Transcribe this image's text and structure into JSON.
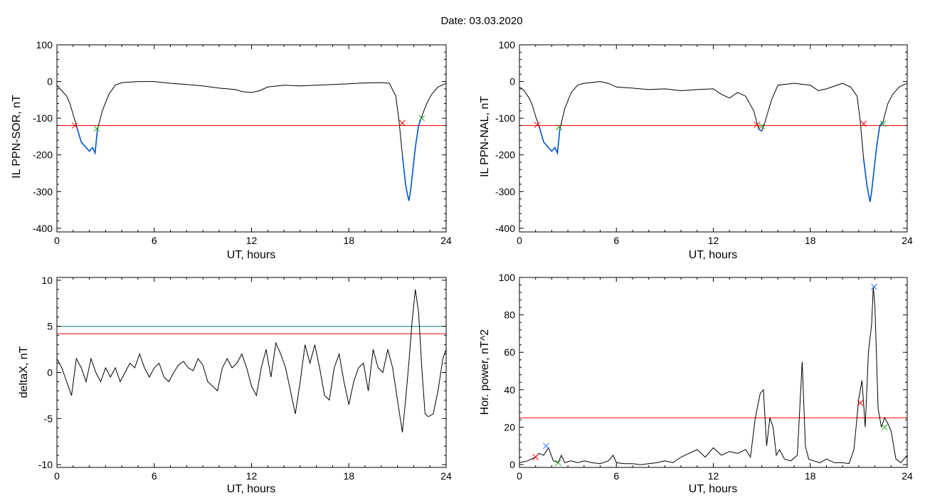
{
  "header": {
    "date_label": "Date:  03.03.2020"
  },
  "colors": {
    "trace": "#000000",
    "highlight": "#0055cc",
    "threshold_red": "#ff0000",
    "threshold_teal": "#008080",
    "marker_green": "#22aa22",
    "marker_blue": "#2277ff"
  },
  "chart_data": [
    {
      "id": "sor",
      "type": "line",
      "xlabel": "UT, hours",
      "ylabel": "IL PPN-SOR, nT",
      "xlim": [
        0,
        24
      ],
      "ylim": [
        -410,
        100
      ],
      "xticks": [
        0,
        6,
        12,
        18,
        24
      ],
      "yticks": [
        100,
        0,
        -100,
        -200,
        -300,
        -400
      ],
      "series": [
        {
          "x": [
            0,
            0.3,
            0.6,
            0.8,
            1.0,
            1.2,
            1.5,
            1.8,
            2.0,
            2.2,
            2.35,
            2.5,
            2.8,
            3.2,
            3.6,
            4.0,
            5.0,
            6.0,
            7.0,
            8.0,
            9.0,
            10.0,
            11.0,
            11.5,
            12.0,
            12.5,
            13.0,
            14.0,
            15.0,
            16.0,
            17.0,
            18.0,
            19.0,
            20.0,
            20.5,
            20.9,
            21.1,
            21.3,
            21.5,
            21.6,
            21.7,
            21.8,
            21.95,
            22.1,
            22.3,
            22.5,
            22.8,
            23.1,
            23.5,
            24.0
          ],
          "y": [
            -10,
            -25,
            -40,
            -60,
            -90,
            -120,
            -165,
            -180,
            -190,
            -180,
            -195,
            -130,
            -80,
            -35,
            -10,
            -3,
            0,
            0,
            -5,
            -8,
            -12,
            -18,
            -22,
            -28,
            -30,
            -25,
            -15,
            -10,
            -12,
            -10,
            -8,
            -6,
            -4,
            -3,
            -5,
            -40,
            -110,
            -200,
            -280,
            -305,
            -325,
            -300,
            -240,
            -180,
            -120,
            -95,
            -60,
            -35,
            -15,
            -5
          ]
        }
      ],
      "highlight_segments": [
        {
          "x": [
            1.2,
            1.5,
            1.8,
            2.0,
            2.2,
            2.35,
            2.5
          ],
          "y": [
            -120,
            -165,
            -180,
            -190,
            -180,
            -195,
            -130
          ]
        },
        {
          "x": [
            21.3,
            21.5,
            21.6,
            21.7,
            21.8,
            21.95,
            22.1,
            22.3,
            22.5
          ],
          "y": [
            -200,
            -280,
            -305,
            -325,
            -300,
            -240,
            -180,
            -120,
            -95
          ]
        }
      ],
      "thresholds": [
        {
          "y": -120,
          "color": "#ff0000"
        }
      ],
      "markers": [
        {
          "x": 1.1,
          "y": -120,
          "color": "#ff0000"
        },
        {
          "x": 2.45,
          "y": -128,
          "color": "#22aa22"
        },
        {
          "x": 21.3,
          "y": -113,
          "color": "#ff0000"
        },
        {
          "x": 22.5,
          "y": -100,
          "color": "#22aa22"
        }
      ]
    },
    {
      "id": "nal",
      "type": "line",
      "xlabel": "UT, hours",
      "ylabel": "IL PPN-NAL, nT",
      "xlim": [
        0,
        24
      ],
      "ylim": [
        -410,
        100
      ],
      "xticks": [
        0,
        6,
        12,
        18,
        24
      ],
      "yticks": [
        100,
        0,
        -100,
        -200,
        -300,
        -400
      ],
      "series": [
        {
          "x": [
            0,
            0.3,
            0.6,
            0.8,
            1.0,
            1.2,
            1.5,
            1.8,
            2.0,
            2.2,
            2.35,
            2.5,
            2.8,
            3.2,
            3.6,
            4.0,
            5.0,
            5.5,
            6.0,
            7.0,
            8.0,
            9.0,
            10.0,
            11.0,
            12.0,
            12.5,
            13.0,
            13.5,
            14.0,
            14.5,
            14.8,
            15.0,
            15.2,
            15.6,
            16.0,
            17.0,
            18.0,
            18.5,
            19.0,
            20.0,
            20.5,
            20.9,
            21.1,
            21.3,
            21.5,
            21.6,
            21.7,
            21.8,
            21.95,
            22.1,
            22.3,
            22.5,
            22.8,
            23.1,
            23.5,
            24.0
          ],
          "y": [
            -15,
            -25,
            -45,
            -65,
            -95,
            -120,
            -165,
            -180,
            -190,
            -180,
            -195,
            -130,
            -75,
            -30,
            -10,
            -5,
            0,
            -5,
            -15,
            -18,
            -22,
            -20,
            -25,
            -22,
            -20,
            -35,
            -45,
            -30,
            -40,
            -80,
            -130,
            -135,
            -110,
            -50,
            -10,
            -5,
            -10,
            -25,
            -20,
            -5,
            -15,
            -40,
            -110,
            -210,
            -280,
            -305,
            -328,
            -300,
            -240,
            -180,
            -120,
            -110,
            -60,
            -35,
            -15,
            -5
          ]
        }
      ],
      "highlight_segments": [
        {
          "x": [
            1.2,
            1.5,
            1.8,
            2.0,
            2.2,
            2.35,
            2.5
          ],
          "y": [
            -120,
            -165,
            -180,
            -190,
            -180,
            -195,
            -130
          ]
        },
        {
          "x": [
            14.8,
            15.0
          ],
          "y": [
            -130,
            -135
          ]
        },
        {
          "x": [
            21.3,
            21.5,
            21.6,
            21.7,
            21.8,
            21.95,
            22.1,
            22.3,
            22.5
          ],
          "y": [
            -210,
            -280,
            -305,
            -328,
            -300,
            -240,
            -180,
            -120,
            -110
          ]
        }
      ],
      "thresholds": [
        {
          "y": -120,
          "color": "#ff0000"
        }
      ],
      "markers": [
        {
          "x": 1.1,
          "y": -118,
          "color": "#ff0000"
        },
        {
          "x": 2.45,
          "y": -125,
          "color": "#22aa22"
        },
        {
          "x": 14.7,
          "y": -118,
          "color": "#ff0000"
        },
        {
          "x": 15.0,
          "y": -122,
          "color": "#22aa22"
        },
        {
          "x": 21.3,
          "y": -115,
          "color": "#ff0000"
        },
        {
          "x": 22.5,
          "y": -115,
          "color": "#22aa22"
        }
      ]
    },
    {
      "id": "deltax",
      "type": "line",
      "xlabel": "UT, hours",
      "ylabel": "deltaX, nT",
      "xlim": [
        0,
        24
      ],
      "ylim": [
        -10.3,
        10.3
      ],
      "xticks": [
        0,
        6,
        12,
        18,
        24
      ],
      "yticks": [
        10,
        5,
        0,
        -5,
        -10
      ],
      "series": [
        {
          "x": [
            0,
            0.3,
            0.6,
            0.9,
            1.2,
            1.5,
            1.8,
            2.1,
            2.4,
            2.7,
            3.0,
            3.3,
            3.6,
            3.9,
            4.2,
            4.5,
            4.8,
            5.1,
            5.4,
            5.7,
            6.0,
            6.3,
            6.6,
            6.9,
            7.2,
            7.5,
            7.8,
            8.1,
            8.4,
            8.7,
            9.0,
            9.3,
            9.6,
            9.9,
            10.2,
            10.5,
            10.8,
            11.1,
            11.4,
            11.7,
            12.0,
            12.3,
            12.6,
            12.9,
            13.2,
            13.5,
            13.8,
            14.1,
            14.4,
            14.7,
            15.0,
            15.3,
            15.6,
            15.9,
            16.2,
            16.5,
            16.8,
            17.1,
            17.4,
            17.7,
            18.0,
            18.3,
            18.6,
            18.9,
            19.2,
            19.5,
            19.8,
            20.1,
            20.4,
            20.7,
            21.0,
            21.3,
            21.5,
            21.7,
            21.9,
            22.1,
            22.3,
            22.5,
            22.7,
            22.9,
            23.2,
            23.5,
            23.8,
            24.0
          ],
          "y": [
            1.5,
            0.5,
            -1.0,
            -2.5,
            1.5,
            0.5,
            -1.0,
            1.5,
            0,
            -1.0,
            0.5,
            -0.5,
            0.5,
            -1.0,
            0,
            1.0,
            0.5,
            2.0,
            0.5,
            -0.5,
            0.5,
            1.0,
            -0.5,
            -1.0,
            0,
            0.8,
            1.2,
            0.5,
            0.2,
            1.5,
            0.8,
            -1.0,
            -1.5,
            -2.0,
            0.5,
            1.5,
            0.5,
            1.0,
            2.0,
            0.5,
            -1.5,
            -2.5,
            0.5,
            2.5,
            -0.5,
            3.2,
            2.0,
            0.5,
            -2.0,
            -4.5,
            -1.0,
            3.0,
            1.0,
            3.0,
            0.5,
            -2.5,
            -3.0,
            0.5,
            2.0,
            -1.0,
            -3.5,
            -1.0,
            0.5,
            1.0,
            -2.0,
            2.5,
            0.5,
            0,
            2.5,
            0.5,
            -3.0,
            -6.5,
            -3.0,
            1.0,
            5.5,
            9.0,
            6.5,
            0.5,
            -4.5,
            -4.8,
            -4.5,
            -2.0,
            1.5,
            2.5
          ]
        }
      ],
      "highlight_segments": [],
      "thresholds": [
        {
          "y": 5.0,
          "color": "#008080"
        },
        {
          "y": 4.2,
          "color": "#ff0000"
        }
      ],
      "markers": []
    },
    {
      "id": "power",
      "type": "line",
      "xlabel": "UT, hours",
      "ylabel": "Hor. power, nT^2",
      "xlim": [
        0,
        24
      ],
      "ylim": [
        -1.5,
        100
      ],
      "xticks": [
        0,
        6,
        12,
        18,
        24
      ],
      "yticks": [
        100,
        80,
        60,
        40,
        20,
        0
      ],
      "series": [
        {
          "x": [
            0,
            0.5,
            1.0,
            1.2,
            1.5,
            1.8,
            2.1,
            2.4,
            2.6,
            2.8,
            3.2,
            3.6,
            4.0,
            4.5,
            5.0,
            5.5,
            5.8,
            6.0,
            6.5,
            7.0,
            7.5,
            8.0,
            8.5,
            9.0,
            9.5,
            10.0,
            10.5,
            11.0,
            11.5,
            12.0,
            12.5,
            13.0,
            13.5,
            14.0,
            14.3,
            14.6,
            14.9,
            15.1,
            15.3,
            15.5,
            15.7,
            15.9,
            16.1,
            16.4,
            16.8,
            17.2,
            17.5,
            17.7,
            17.9,
            18.2,
            18.6,
            19.0,
            19.5,
            20.0,
            20.4,
            20.7,
            21.0,
            21.2,
            21.4,
            21.6,
            21.8,
            21.9,
            22.0,
            22.2,
            22.4,
            22.6,
            22.8,
            23.0,
            23.3,
            23.6,
            24.0
          ],
          "y": [
            1,
            2,
            4,
            6,
            5,
            9,
            2,
            1,
            5,
            1,
            2,
            1,
            2,
            1,
            0.5,
            2,
            5,
            1,
            0.5,
            0.5,
            0,
            0.5,
            1,
            2,
            1,
            4,
            6,
            8,
            4,
            9,
            5,
            7,
            6,
            8,
            4,
            25,
            38,
            40,
            10,
            25,
            20,
            5,
            8,
            3,
            2,
            5,
            55,
            10,
            3,
            2,
            1,
            3,
            1,
            1,
            0.5,
            8,
            35,
            45,
            20,
            60,
            75,
            95,
            85,
            30,
            20,
            25,
            22,
            18,
            3,
            1,
            5
          ]
        }
      ],
      "highlight_segments": [],
      "thresholds": [
        {
          "y": 25,
          "color": "#ff0000"
        }
      ],
      "markers": [
        {
          "x": 1.0,
          "y": 4,
          "color": "#ff0000"
        },
        {
          "x": 1.65,
          "y": 10,
          "color": "#2277ff"
        },
        {
          "x": 2.4,
          "y": 1,
          "color": "#22aa22"
        },
        {
          "x": 21.1,
          "y": 33,
          "color": "#ff0000"
        },
        {
          "x": 21.95,
          "y": 95,
          "color": "#2277ff"
        },
        {
          "x": 22.6,
          "y": 20,
          "color": "#22aa22"
        }
      ]
    }
  ]
}
